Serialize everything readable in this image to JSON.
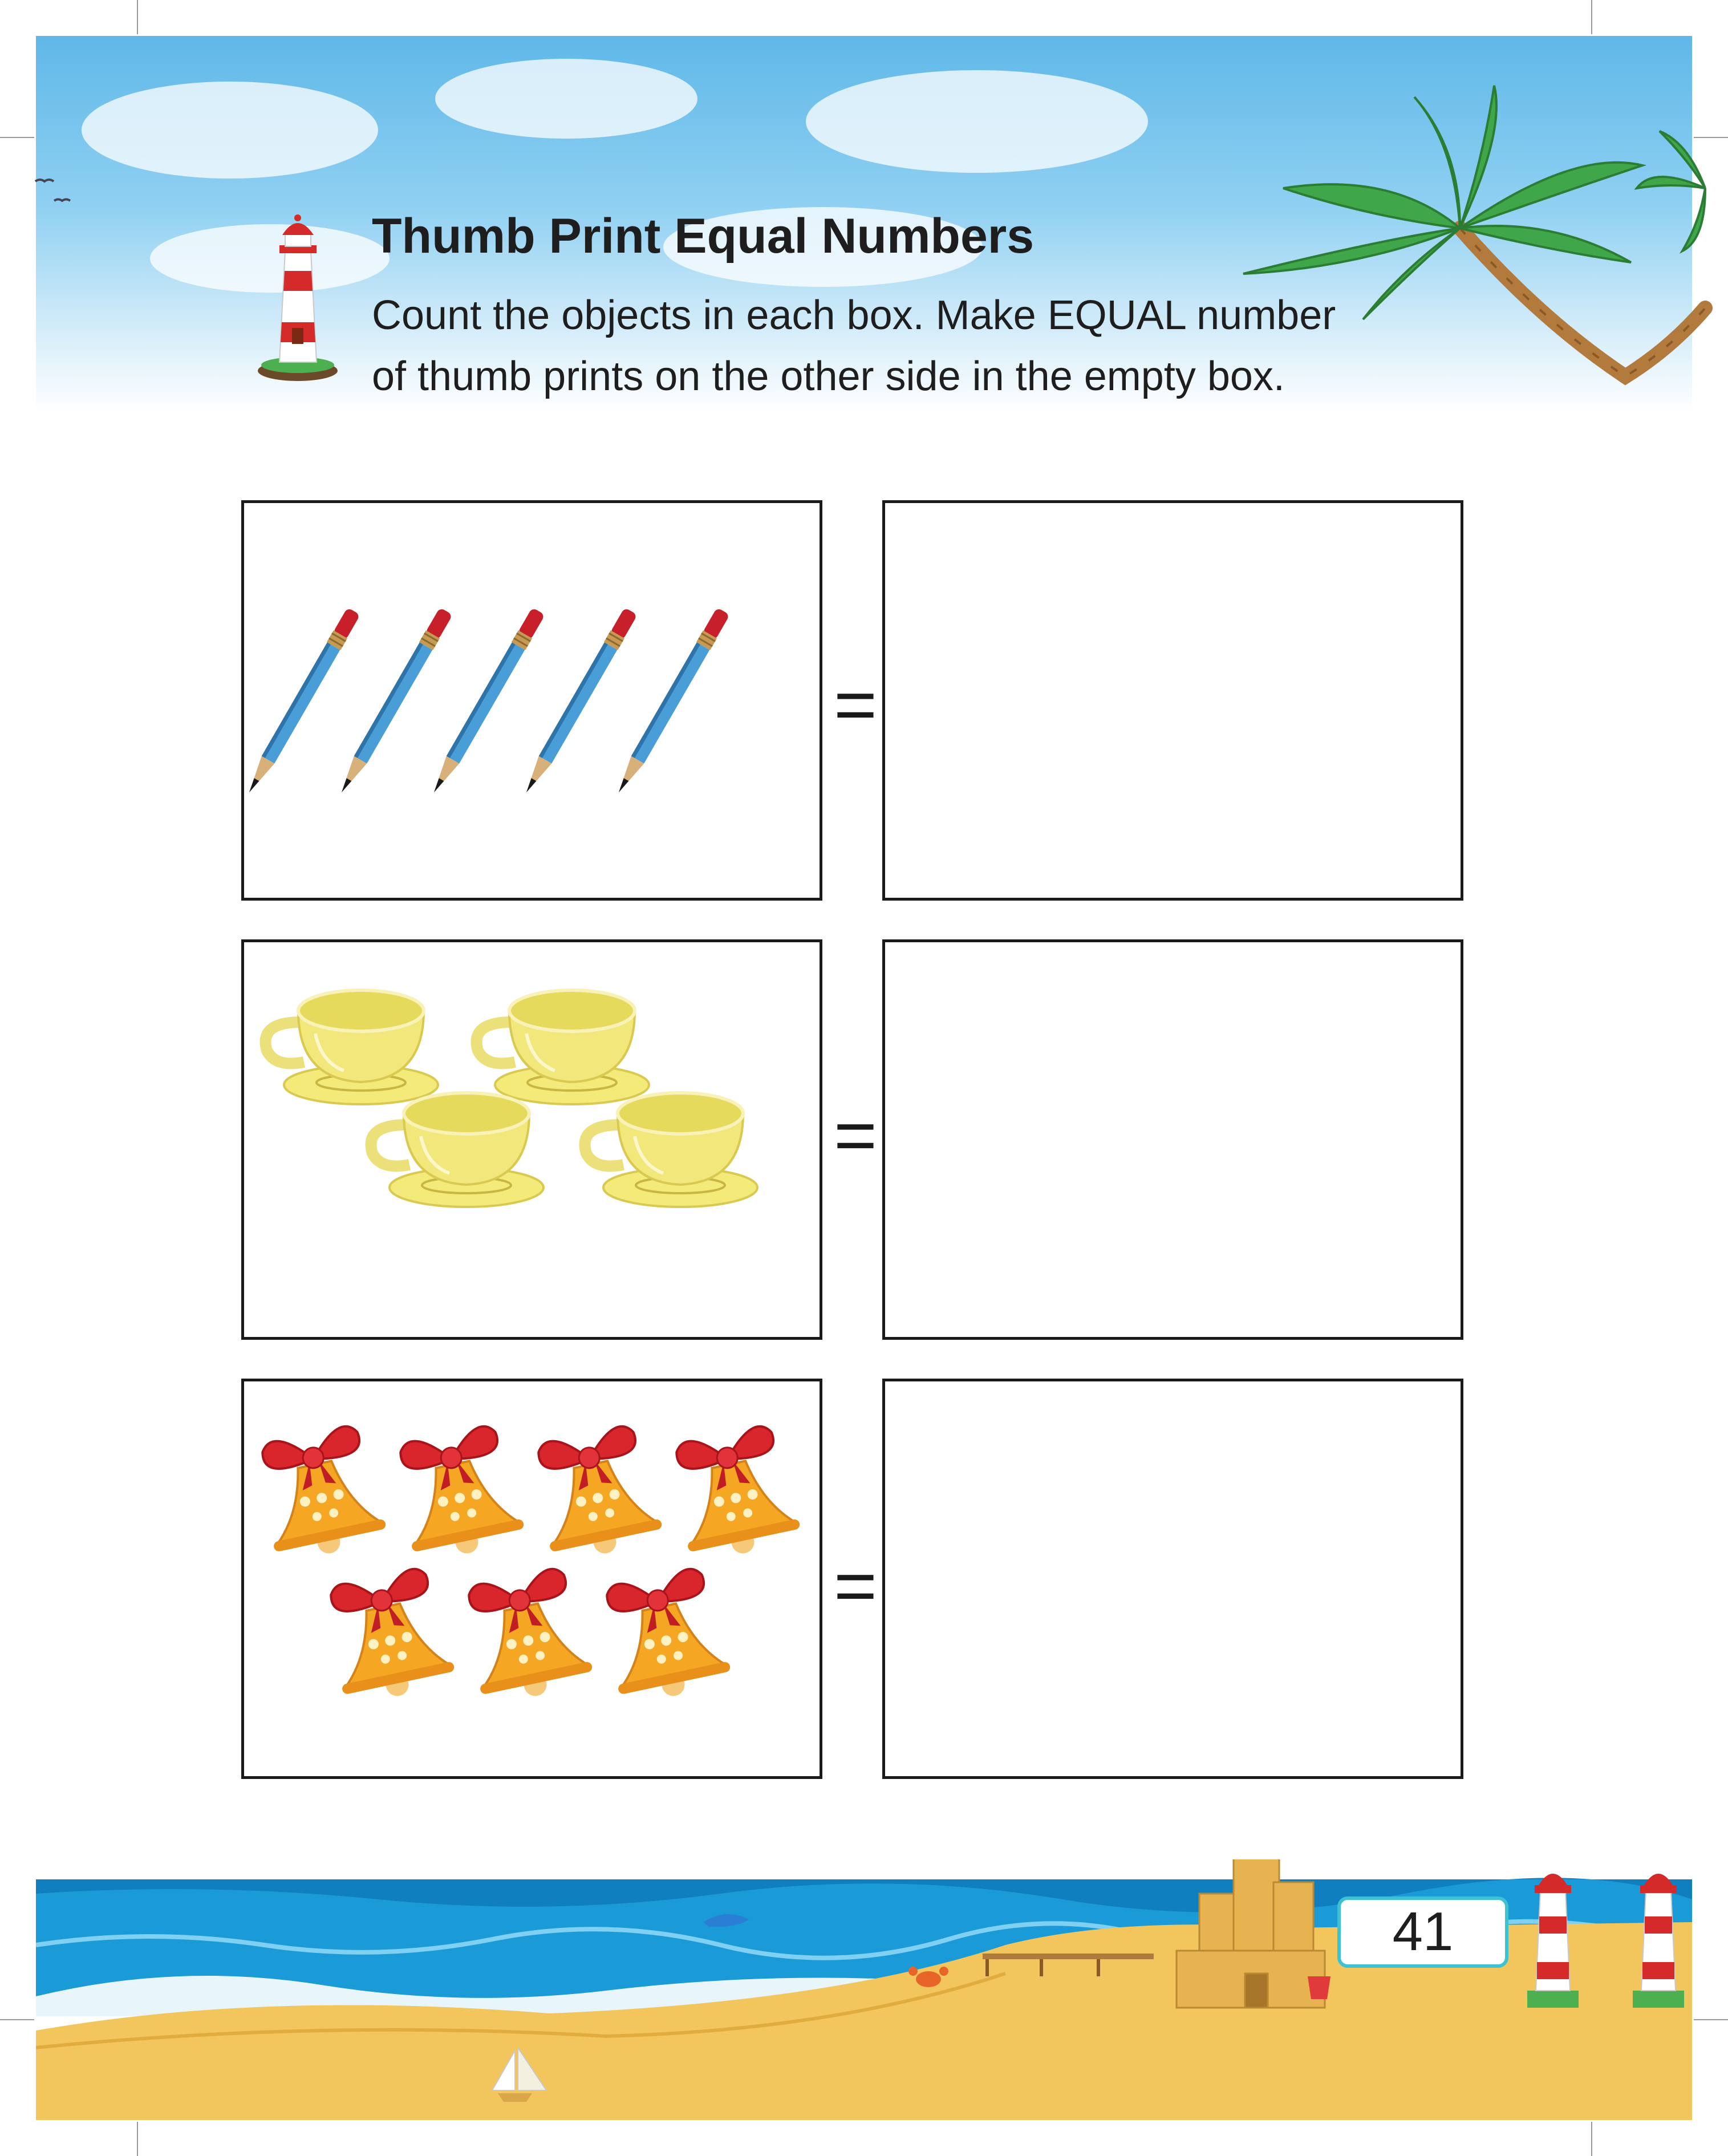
{
  "header": {
    "title": "Thumb Print Equal Numbers",
    "instruction_line1": "Count the objects in each box. Make EQUAL number",
    "instruction_line2": "of thumb prints on the other side in the empty box."
  },
  "rows": [
    {
      "object_icon": "pencil-icon",
      "count": 5,
      "equals_sign": "="
    },
    {
      "object_icon": "teacup-icon",
      "count": 4,
      "equals_sign": "="
    },
    {
      "object_icon": "bell-icon",
      "count": 7,
      "equals_sign": "="
    }
  ],
  "footer": {
    "page_number": "41"
  },
  "colors": {
    "sky": "#5fb8e8",
    "sea": "#1a9ad6",
    "sand": "#f2c65c",
    "pencil": "#4a9ed8",
    "teacup": "#f1e77a",
    "bell": "#f5a623",
    "bow": "#d9262c",
    "badge_border": "#3cc3d2"
  }
}
